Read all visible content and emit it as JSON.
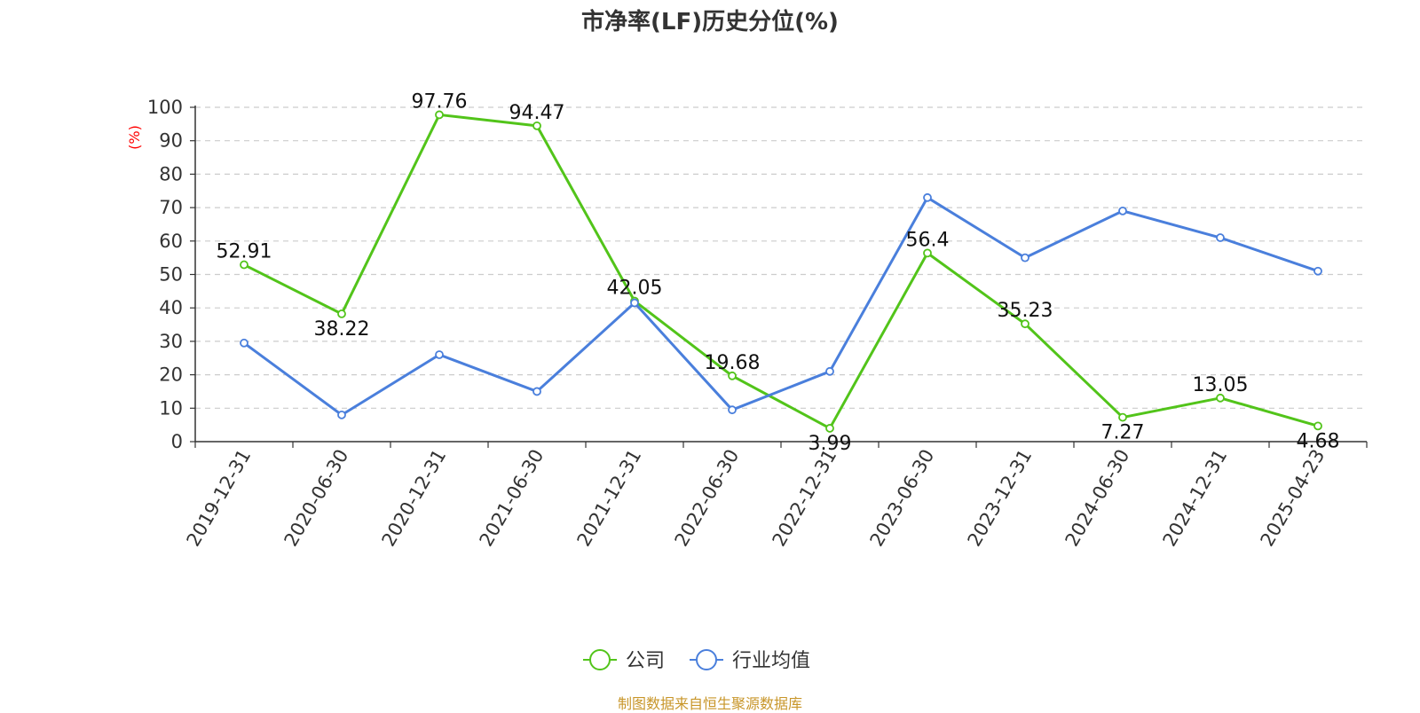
{
  "title": "市净率(LF)历史分位(%)",
  "source": "制图数据来自恒生聚源数据库",
  "colors": {
    "company": "#52c41a",
    "industry": "#4a7fdc",
    "ylabel": "#ff0000",
    "source": "#c8962a"
  },
  "chart_data": {
    "type": "line",
    "title": "市净率(LF)历史分位(%)",
    "ylabel": "(%)",
    "ylim": [
      0,
      100
    ],
    "yticks": [
      0,
      10,
      20,
      30,
      40,
      50,
      60,
      70,
      80,
      90,
      100
    ],
    "grid": true,
    "legend_position": "bottom-center",
    "categories": [
      "2019-12-31",
      "2020-06-30",
      "2020-12-31",
      "2021-06-30",
      "2021-12-31",
      "2022-06-30",
      "2022-12-31",
      "2023-06-30",
      "2023-12-31",
      "2024-06-30",
      "2024-12-31",
      "2025-04-23"
    ],
    "series": [
      {
        "name": "公司",
        "color": "#52c41a",
        "show_labels": true,
        "values": [
          52.91,
          38.22,
          97.76,
          94.47,
          42.05,
          19.68,
          3.99,
          56.4,
          35.23,
          7.27,
          13.05,
          4.68
        ],
        "labels": [
          "52.91",
          "38.22",
          "97.76",
          "94.47",
          "42.05",
          "19.68",
          "3.99",
          "56.4",
          "35.23",
          "7.27",
          "13.05",
          "4.68"
        ]
      },
      {
        "name": "行业均值",
        "color": "#4a7fdc",
        "show_labels": false,
        "values": [
          29.5,
          8,
          26,
          15,
          41.5,
          9.5,
          21,
          73,
          55,
          69,
          61,
          51
        ]
      }
    ]
  }
}
